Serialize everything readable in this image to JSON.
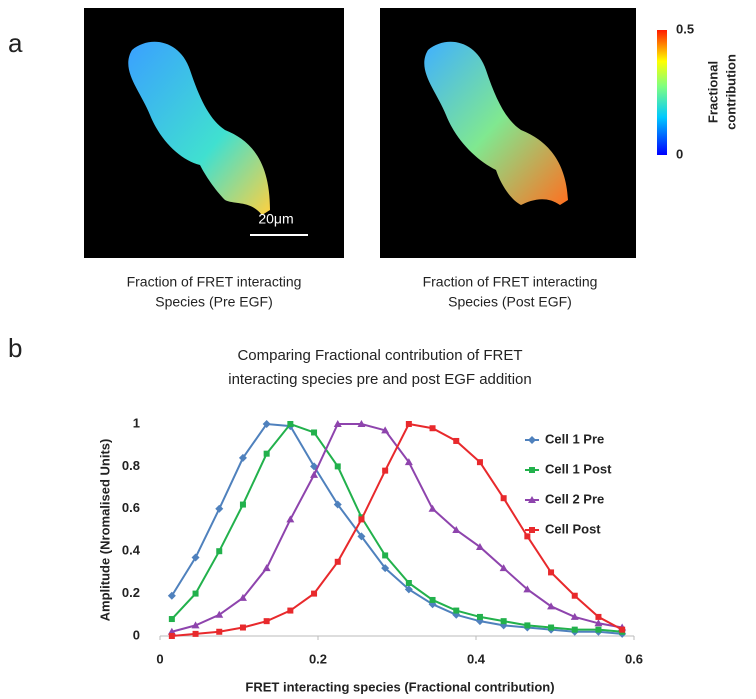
{
  "panel_a": {
    "label": "a",
    "images": [
      {
        "caption": [
          "Fraction of FRET interacting",
          "Species (Pre EGF)"
        ],
        "scale_bar": "20μm"
      },
      {
        "caption": [
          "Fraction of FRET interacting",
          "Species (Post EGF)"
        ]
      }
    ],
    "colorbar": {
      "max": "0.5",
      "min": "0",
      "title": [
        "Fractional",
        "contribution"
      ]
    }
  },
  "panel_b": {
    "label": "b"
  },
  "chart_data": {
    "type": "line",
    "title": [
      "Comparing Fractional contribution of FRET",
      "interacting species pre and post EGF addition"
    ],
    "x_label": "FRET interacting species (Fractional contribution)",
    "y_label": "Amplitude (Nromalised Units)",
    "x": [
      0.015,
      0.045,
      0.075,
      0.105,
      0.135,
      0.165,
      0.195,
      0.225,
      0.255,
      0.285,
      0.315,
      0.345,
      0.375,
      0.405,
      0.435,
      0.465,
      0.495,
      0.525,
      0.555,
      0.585
    ],
    "series": [
      {
        "name": "Cell 1 Pre",
        "color": "#4f81bd",
        "marker": "diamond",
        "values": [
          0.19,
          0.37,
          0.6,
          0.84,
          1.0,
          0.99,
          0.8,
          0.62,
          0.47,
          0.32,
          0.22,
          0.15,
          0.1,
          0.07,
          0.05,
          0.04,
          0.03,
          0.02,
          0.02,
          0.01
        ]
      },
      {
        "name": "Cell 1 Post",
        "color": "#22b14c",
        "marker": "square",
        "values": [
          0.08,
          0.2,
          0.4,
          0.62,
          0.86,
          1.0,
          0.96,
          0.8,
          0.56,
          0.38,
          0.25,
          0.17,
          0.12,
          0.09,
          0.07,
          0.05,
          0.04,
          0.03,
          0.03,
          0.02
        ]
      },
      {
        "name": "Cell 2  Pre",
        "color": "#8e44ad",
        "marker": "triangle",
        "values": [
          0.02,
          0.05,
          0.1,
          0.18,
          0.32,
          0.55,
          0.76,
          1.0,
          1.0,
          0.97,
          0.82,
          0.6,
          0.5,
          0.42,
          0.32,
          0.22,
          0.14,
          0.09,
          0.06,
          0.04
        ]
      },
      {
        "name": "Cell Post",
        "color": "#e8292c",
        "marker": "square",
        "values": [
          0.0,
          0.01,
          0.02,
          0.04,
          0.07,
          0.12,
          0.2,
          0.35,
          0.55,
          0.78,
          1.0,
          0.98,
          0.92,
          0.82,
          0.65,
          0.47,
          0.3,
          0.19,
          0.09,
          0.03
        ]
      }
    ],
    "xlim": [
      0,
      0.6
    ],
    "xticks": [
      0,
      0.2,
      0.4,
      0.6
    ],
    "ylim": [
      0,
      1
    ],
    "yticks": [
      0,
      0.2,
      0.4,
      0.6,
      0.8,
      1
    ],
    "legend": "right"
  }
}
